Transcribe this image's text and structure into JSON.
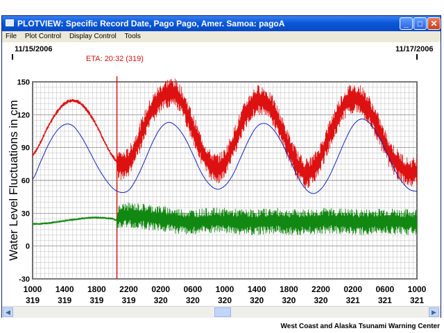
{
  "window": {
    "title": "PLOTVIEW: Specific Record Date, Pago Pago, Amer. Samoa: pagoA",
    "controls": {
      "minimize": "_",
      "maximize": "□",
      "close": "✕"
    }
  },
  "menu": {
    "items": [
      "File",
      "Plot Control",
      "Display Control",
      "Tools"
    ]
  },
  "dates": {
    "start": "11/15/2006",
    "end": "11/17/2006"
  },
  "eta_label": "ETA: 20:32 (319)",
  "footer": "West Coast and Alaska Tsunami Warning Center",
  "colors": {
    "observed": "#dd1111",
    "predicted": "#1122bb",
    "residual": "#118811",
    "eta_line": "#dd1111"
  },
  "chart_data": {
    "type": "line",
    "ylabel": "Water Level Fluctuations in cm",
    "ylim": [
      -30,
      150
    ],
    "yticks": [
      150,
      120,
      90,
      60,
      30,
      0,
      -30
    ],
    "xlim": [
      0,
      48
    ],
    "xticks": [
      {
        "hour": 0,
        "time": "1000",
        "day": "319"
      },
      {
        "hour": 4,
        "time": "1400",
        "day": "319"
      },
      {
        "hour": 8,
        "time": "1800",
        "day": "319"
      },
      {
        "hour": 12,
        "time": "2200",
        "day": "319"
      },
      {
        "hour": 16,
        "time": "0200",
        "day": "320"
      },
      {
        "hour": 20,
        "time": "0600",
        "day": "320"
      },
      {
        "hour": 24,
        "time": "1000",
        "day": "320"
      },
      {
        "hour": 28,
        "time": "1400",
        "day": "320"
      },
      {
        "hour": 32,
        "time": "1800",
        "day": "320"
      },
      {
        "hour": 36,
        "time": "2200",
        "day": "320"
      },
      {
        "hour": 40,
        "time": "0200",
        "day": "321"
      },
      {
        "hour": 44,
        "time": "0600",
        "day": "321"
      },
      {
        "hour": 48,
        "time": "1000",
        "day": "321"
      }
    ],
    "eta_hour": 10.53,
    "grid": true,
    "series": [
      {
        "key": "observed",
        "x": [
          0,
          1,
          2,
          3,
          4,
          5,
          6,
          7,
          8,
          9,
          10,
          11,
          12,
          13,
          14,
          15,
          16,
          17,
          18,
          19,
          20,
          21,
          22,
          23,
          24,
          25,
          26,
          27,
          28,
          29,
          30,
          31,
          32,
          33,
          34,
          35,
          36,
          37,
          38,
          39,
          40,
          41,
          42,
          43,
          44,
          45,
          46,
          47,
          48
        ],
        "y": [
          83,
          95,
          110,
          122,
          130,
          133,
          130,
          122,
          110,
          95,
          82,
          74,
          77,
          92,
          110,
          125,
          135,
          140,
          138,
          126,
          108,
          90,
          76,
          71,
          76,
          92,
          110,
          125,
          133,
          132,
          123,
          108,
          90,
          75,
          67,
          70,
          82,
          100,
          117,
          130,
          135,
          133,
          124,
          110,
          93,
          80,
          72,
          67,
          68
        ],
        "noise_after": 10.53,
        "noise_amp": [
          2,
          14
        ]
      },
      {
        "key": "predicted",
        "x": [
          0,
          1,
          2,
          3,
          4,
          5,
          6,
          7,
          8,
          9,
          10,
          11,
          12,
          13,
          14,
          15,
          16,
          17,
          18,
          19,
          20,
          21,
          22,
          23,
          24,
          25,
          26,
          27,
          28,
          29,
          30,
          31,
          32,
          33,
          34,
          35,
          36,
          37,
          38,
          39,
          40,
          41,
          42,
          43,
          44,
          45,
          46,
          47,
          48
        ],
        "y": [
          61,
          77,
          93,
          105,
          111,
          110,
          101,
          88,
          74,
          62,
          53,
          49,
          51,
          62,
          78,
          95,
          108,
          113,
          109,
          99,
          84,
          68,
          57,
          52,
          55,
          65,
          81,
          97,
          109,
          112,
          107,
          96,
          81,
          65,
          53,
          48,
          52,
          63,
          79,
          96,
          110,
          116,
          113,
          103,
          89,
          73,
          60,
          52,
          50
        ],
        "noise_after": null,
        "noise_amp": [
          0,
          0
        ]
      },
      {
        "key": "residual",
        "x": [
          0,
          2,
          4,
          6,
          8,
          10,
          10.5,
          11,
          12,
          14,
          16,
          18,
          20,
          22,
          24,
          26,
          28,
          30,
          32,
          34,
          36,
          38,
          40,
          42,
          44,
          46,
          48
        ],
        "y": [
          20,
          21,
          23,
          25,
          26,
          25,
          24,
          27,
          28,
          27,
          25,
          23,
          22,
          23,
          23,
          22,
          22,
          23,
          22,
          22,
          23,
          23,
          22,
          22,
          23,
          22,
          22
        ],
        "noise_after": 10.53,
        "noise_amp": [
          1,
          12
        ]
      }
    ]
  }
}
